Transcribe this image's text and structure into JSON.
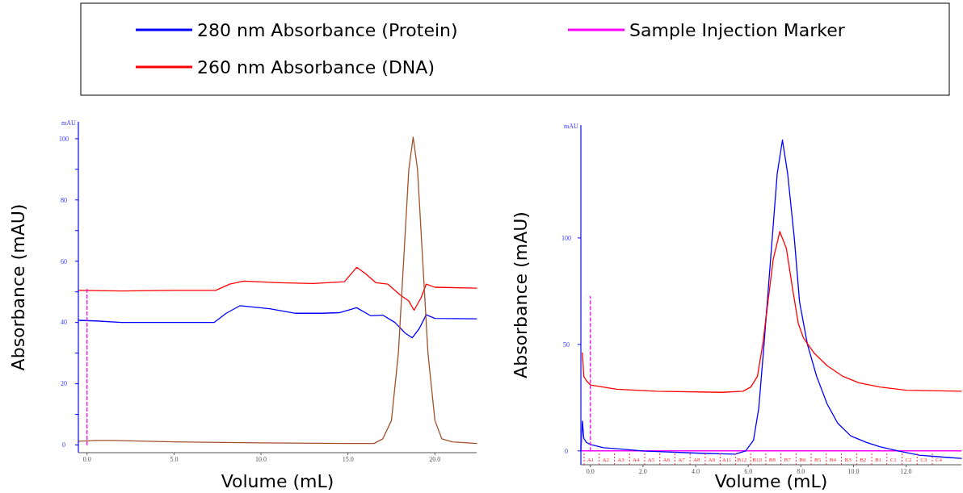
{
  "chart_data": [
    {
      "type": "line",
      "xlabel": "Volume (mL)",
      "ylabel": "Absorbance (mAU)",
      "legend": "top",
      "annotations": [
        "mAU"
      ],
      "xlim": [
        -0.5,
        22.4
      ],
      "ylim": [
        -2.5,
        105.5
      ],
      "xticks": [
        {
          "value": 0,
          "label": "0.0"
        },
        {
          "value": 5,
          "label": "5.0"
        },
        {
          "value": 10,
          "label": "10.0"
        },
        {
          "value": 15,
          "label": "15.0"
        },
        {
          "value": 20,
          "label": "20.0"
        }
      ],
      "yticks": [
        0,
        {
          "value": 10,
          "label": null
        },
        20,
        {
          "value": 30,
          "label": null
        },
        40,
        {
          "value": 50,
          "label": null
        },
        60,
        {
          "value": 70,
          "label": null
        },
        80,
        {
          "value": 90,
          "label": null
        },
        100
      ],
      "series": [
        {
          "name": "280 nm Absorbance (Protein)",
          "color": "#0000ff",
          "x": [
            -0.5,
            0.5,
            2,
            5,
            7.3,
            8,
            8.8,
            10.5,
            12,
            13.5,
            14.5,
            15.5,
            16.3,
            17,
            17.7,
            18.3,
            18.7,
            19.1,
            19.5,
            20,
            22.4
          ],
          "values": [
            40.7,
            40.5,
            40,
            40,
            40,
            43,
            45.5,
            44.5,
            43,
            43,
            43.2,
            44.8,
            42.2,
            42.4,
            40,
            36.5,
            35,
            38,
            42.5,
            41.3,
            41.2
          ]
        },
        {
          "name": "260 nm Absorbance (DNA)",
          "color": "#ff0000",
          "x": [
            -0.5,
            2,
            5,
            7.4,
            8.2,
            9,
            11,
            13,
            14.8,
            15.5,
            16,
            16.6,
            17.3,
            18,
            18.5,
            18.8,
            19.2,
            19.5,
            20,
            22.4
          ],
          "values": [
            50.5,
            50.3,
            50.5,
            50.5,
            52.5,
            53.5,
            53,
            52.7,
            53.3,
            58,
            56,
            53,
            52.5,
            49,
            47,
            44,
            48,
            52.5,
            51.5,
            51.2
          ]
        },
        {
          "color": "#a0522d",
          "x": [
            -0.5,
            0.5,
            1.5,
            5,
            10,
            15,
            16.5,
            17,
            17.5,
            17.9,
            18.2,
            18.5,
            18.75,
            19,
            19.3,
            19.6,
            20,
            20.4,
            21,
            22.4
          ],
          "values": [
            1.2,
            1.5,
            1.5,
            1,
            0.7,
            0.5,
            0.5,
            2,
            8,
            30,
            60,
            90,
            100.5,
            90,
            60,
            30,
            8,
            2,
            1,
            0.5
          ]
        },
        {
          "name": "Sample Injection Marker",
          "color": "#ff00ff",
          "line_style": "dashed",
          "x": [
            0,
            0
          ],
          "values": [
            0,
            51.5
          ]
        }
      ]
    },
    {
      "type": "line",
      "xlabel": "Volume (mL)",
      "ylabel": "Absorbance (mAU)",
      "xlim": [
        -0.36,
        14.1
      ],
      "ylim": [
        -6.5,
        153
      ],
      "xticks": [
        {
          "value": 0,
          "label": "0.0"
        },
        {
          "value": 2,
          "label": "2.0"
        },
        {
          "value": 4,
          "label": "4.0"
        },
        {
          "value": 6,
          "label": "6.0"
        },
        {
          "value": 8,
          "label": "8.0"
        },
        {
          "value": 10,
          "label": "10.0"
        },
        {
          "value": 12,
          "label": "12.0"
        }
      ],
      "yticks": [
        0,
        50,
        100
      ],
      "ref_lines": [
        {
          "axis": "y",
          "value": 0,
          "color": "#ff00ff"
        }
      ],
      "annotations": [
        "mAU",
        "A1",
        "A2",
        "A3",
        "A4",
        "A5",
        "A6",
        "A7",
        "A8",
        "A9",
        "A11",
        "B12",
        "B10",
        "B8",
        "B7",
        "B6",
        "B5",
        "B4",
        "B3",
        "B2",
        "B1",
        "C1",
        "C2",
        "C3",
        "C4"
      ],
      "series": [
        {
          "color": "#0000ff",
          "x": [
            -0.36,
            -0.3,
            -0.25,
            -0.15,
            0,
            0.5,
            1,
            2,
            4,
            5.5,
            5.9,
            6.2,
            6.4,
            6.6,
            6.85,
            7.1,
            7.3,
            7.5,
            7.75,
            7.95,
            8.25,
            8.6,
            9,
            9.4,
            9.9,
            10.5,
            11,
            11.7,
            12.5,
            13.5,
            14.1
          ],
          "values": [
            0,
            14,
            6,
            4,
            3,
            1.5,
            1,
            0,
            -1,
            -1.5,
            0,
            5,
            20,
            50,
            90,
            130,
            146,
            130,
            100,
            70,
            50,
            35,
            22,
            13,
            7,
            4,
            2,
            0,
            -2,
            -3,
            -3.5
          ]
        },
        {
          "color": "#ff0000",
          "x": [
            -0.3,
            -0.25,
            -0.15,
            0,
            1,
            2.5,
            5,
            5.8,
            6.1,
            6.35,
            6.55,
            6.75,
            6.95,
            7.2,
            7.45,
            7.7,
            7.9,
            8.1,
            8.5,
            9,
            9.6,
            10.2,
            11,
            12,
            14.1
          ],
          "values": [
            46,
            35,
            33,
            31,
            29,
            28,
            27.5,
            28,
            30,
            35,
            50,
            70,
            90,
            103,
            95,
            75,
            60,
            53,
            46,
            40,
            35,
            32,
            30,
            28.5,
            28
          ]
        },
        {
          "color": "#ff00ff",
          "line_style": "dashed",
          "x": [
            0,
            0
          ],
          "values": [
            0,
            72.5
          ]
        }
      ]
    }
  ]
}
